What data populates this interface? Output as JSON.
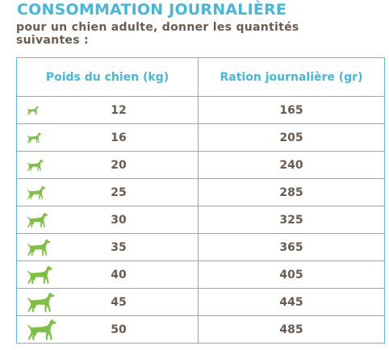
{
  "header": {
    "title": "CONSOMMATION JOURNALIÈRE",
    "subtitle": "pour un chien adulte, donner les quantités suivantes :"
  },
  "table": {
    "col_weight": "Poids du chien (kg)",
    "col_ration": "Ration journalière (gr)",
    "rows": [
      {
        "weight": "12",
        "ration": "165",
        "icon": "dog-icon",
        "icon_scale": 0.42
      },
      {
        "weight": "16",
        "ration": "205",
        "icon": "dog-icon",
        "icon_scale": 0.5
      },
      {
        "weight": "20",
        "ration": "240",
        "icon": "dog-icon",
        "icon_scale": 0.57
      },
      {
        "weight": "25",
        "ration": "285",
        "icon": "dog-icon",
        "icon_scale": 0.64
      },
      {
        "weight": "30",
        "ration": "325",
        "icon": "dog-icon",
        "icon_scale": 0.72
      },
      {
        "weight": "35",
        "ration": "365",
        "icon": "dog-icon",
        "icon_scale": 0.8
      },
      {
        "weight": "40",
        "ration": "405",
        "icon": "dog-icon",
        "icon_scale": 0.87
      },
      {
        "weight": "45",
        "ration": "445",
        "icon": "dog-icon",
        "icon_scale": 0.94
      },
      {
        "weight": "50",
        "ration": "485",
        "icon": "dog-icon",
        "icon_scale": 1.0
      }
    ]
  },
  "colors": {
    "accent_blue": "#45b6dc",
    "text_brown": "#6b5a4d",
    "dog_green": "#7dc142"
  }
}
